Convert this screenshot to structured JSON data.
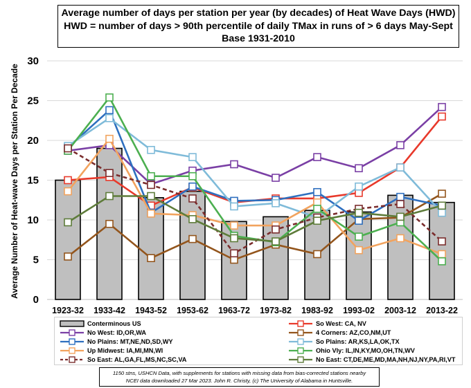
{
  "title": {
    "line1": "Average number of days per station per year (by decades) of Heat Wave Days (HWD)",
    "line2": "HWD = number of days > 90th percentile of daily TMax in runs of > 6 days May-Sept",
    "line3": "Base 1931-2010"
  },
  "note": {
    "line1": "1150 stns, USHCN Data, with supplements for stations with missing data from bias-corrected stations nearby",
    "line2": "NCEI data downloaded 27 Mar 2023.   John R. Christy, (c) The University of Alabama in Huntsville."
  },
  "chart_data": {
    "type": "bar+line",
    "title": "Average number of days per station per year (by decades) of Heat Wave Days (HWD)",
    "xlabel": "",
    "ylabel": "Average Number of Heat-wave Days per Station Per Decade",
    "ylim": [
      0,
      30
    ],
    "yticks": [
      "0",
      "5",
      "10",
      "15",
      "20",
      "25",
      "30"
    ],
    "categories": [
      "1923-32",
      "1933-42",
      "1943-52",
      "1953-62",
      "1963-72",
      "1973-82",
      "1983-92",
      "1993-02",
      "2003-12",
      "2013-22"
    ],
    "bars": {
      "name": "Conterminous US",
      "values": [
        15.0,
        19.0,
        12.8,
        13.6,
        9.8,
        10.4,
        11.2,
        11.0,
        13.1,
        12.2
      ]
    },
    "series": [
      {
        "name": "So West: CA, NV",
        "color": "#e8392b",
        "dashed": false,
        "values": [
          15.0,
          15.4,
          11.8,
          14.1,
          12.2,
          12.7,
          12.7,
          13.4,
          16.6,
          23.0
        ]
      },
      {
        "name": "No West: ID,OR,WA",
        "color": "#7a3fa5",
        "dashed": false,
        "values": [
          18.7,
          19.4,
          14.5,
          16.2,
          17.0,
          15.3,
          17.9,
          16.5,
          19.4,
          24.2
        ]
      },
      {
        "name": "4 Corners: AZ,CO,NM,UT",
        "color": "#93551c",
        "dashed": false,
        "values": [
          5.4,
          9.5,
          5.2,
          7.6,
          5.0,
          6.9,
          5.7,
          10.1,
          10.3,
          13.3
        ]
      },
      {
        "name": "No Plains: MT,NE,ND,SD,WY",
        "color": "#2e6fbf",
        "dashed": false,
        "values": [
          19.1,
          23.8,
          10.9,
          14.2,
          12.4,
          12.5,
          13.5,
          9.9,
          12.9,
          11.8
        ]
      },
      {
        "name": "So Plains: AR,KS,LA,OK,TX",
        "color": "#7fbbd9",
        "dashed": false,
        "values": [
          19.3,
          22.8,
          18.8,
          17.9,
          11.7,
          12.1,
          10.3,
          14.2,
          16.6,
          10.9
        ]
      },
      {
        "name": "Up Midwest: IA,MI,MN,WI",
        "color": "#f2a35e",
        "dashed": false,
        "values": [
          13.6,
          20.2,
          10.8,
          10.6,
          9.3,
          9.3,
          12.2,
          6.2,
          7.7,
          5.7
        ]
      },
      {
        "name": "Ohio Vly: IL,IN,KY,MO,OH,TN,WV",
        "color": "#4caf50",
        "dashed": false,
        "values": [
          18.7,
          25.4,
          15.5,
          15.5,
          8.0,
          7.2,
          11.4,
          7.9,
          9.7,
          4.8
        ]
      },
      {
        "name": "So East: AL,GA,FL,MS,NC,SC,VA",
        "color": "#7b2d2d",
        "dashed": true,
        "values": [
          19.0,
          15.9,
          14.4,
          12.7,
          5.8,
          8.8,
          10.3,
          11.4,
          12.0,
          7.3
        ]
      },
      {
        "name": "No East: CT,DE,ME,MD,MA,NH,NJ,NY,PA,RI,VT",
        "color": "#5e7c3a",
        "dashed": false,
        "values": [
          9.7,
          13.0,
          13.0,
          10.1,
          7.7,
          7.3,
          9.9,
          10.9,
          10.4,
          11.8
        ]
      }
    ]
  }
}
